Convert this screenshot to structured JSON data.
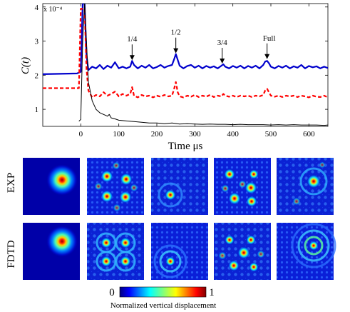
{
  "chart_data": {
    "type": "line",
    "title": "",
    "xlabel": "Time μs",
    "ylabel": "C(t)",
    "y_scale_note": "x 10⁻⁴",
    "xlim": [
      -100,
      650
    ],
    "ylim": [
      0.5,
      4.1
    ],
    "x_ticks": [
      "0",
      "100",
      "200",
      "300",
      "400",
      "500",
      "600"
    ],
    "y_ticks": [
      "1",
      "2",
      "3",
      "4"
    ],
    "annotations": [
      {
        "label": "1/4",
        "x": 135,
        "y": 2.4
      },
      {
        "label": "1/2",
        "x": 250,
        "y": 2.6
      },
      {
        "label": "3/4",
        "x": 372,
        "y": 2.3
      },
      {
        "label": "Full",
        "x": 490,
        "y": 2.43
      }
    ],
    "series": [
      {
        "color": "#0000cc",
        "style": "solid",
        "x": [
          -100,
          -10,
          0,
          5,
          10,
          15,
          20,
          30,
          40,
          50,
          60,
          70,
          80,
          90,
          100,
          110,
          120,
          130,
          135,
          140,
          150,
          160,
          170,
          180,
          190,
          200,
          210,
          220,
          230,
          240,
          245,
          250,
          255,
          260,
          270,
          280,
          290,
          300,
          310,
          320,
          330,
          340,
          350,
          360,
          370,
          375,
          380,
          390,
          400,
          410,
          420,
          430,
          440,
          450,
          460,
          470,
          480,
          485,
          490,
          495,
          500,
          510,
          520,
          530,
          540,
          550,
          560,
          570,
          580,
          590,
          600,
          610,
          620,
          630,
          640,
          650
        ],
        "y": [
          2.03,
          2.05,
          2.1,
          4.1,
          4.1,
          2.6,
          2.15,
          2.25,
          2.2,
          2.3,
          2.18,
          2.28,
          2.22,
          2.38,
          2.2,
          2.25,
          2.2,
          2.25,
          2.42,
          2.3,
          2.2,
          2.28,
          2.22,
          2.3,
          2.2,
          2.24,
          2.3,
          2.22,
          2.27,
          2.3,
          2.45,
          2.62,
          2.45,
          2.28,
          2.2,
          2.27,
          2.3,
          2.22,
          2.28,
          2.2,
          2.27,
          2.22,
          2.26,
          2.2,
          2.28,
          2.32,
          2.25,
          2.2,
          2.27,
          2.22,
          2.28,
          2.2,
          2.27,
          2.22,
          2.28,
          2.2,
          2.3,
          2.4,
          2.42,
          2.35,
          2.25,
          2.2,
          2.27,
          2.22,
          2.28,
          2.2,
          2.26,
          2.22,
          2.3,
          2.2,
          2.27,
          2.23,
          2.26,
          2.2,
          2.25,
          2.21
        ]
      },
      {
        "color": "#ff0000",
        "style": "dashed",
        "x": [
          -100,
          -10,
          -5,
          0,
          5,
          10,
          15,
          20,
          30,
          40,
          50,
          60,
          70,
          80,
          90,
          100,
          110,
          120,
          130,
          135,
          140,
          150,
          160,
          170,
          180,
          190,
          200,
          210,
          220,
          230,
          240,
          245,
          250,
          255,
          260,
          270,
          280,
          290,
          300,
          310,
          320,
          330,
          340,
          350,
          360,
          370,
          375,
          380,
          390,
          400,
          410,
          420,
          430,
          440,
          450,
          460,
          470,
          480,
          485,
          490,
          495,
          500,
          510,
          520,
          530,
          540,
          550,
          560,
          570,
          580,
          590,
          600,
          610,
          620,
          630,
          640,
          650
        ],
        "y": [
          1.62,
          1.62,
          1.62,
          3.95,
          3.95,
          3.95,
          2.2,
          1.55,
          1.35,
          1.42,
          1.38,
          1.5,
          1.4,
          1.45,
          1.52,
          1.38,
          1.45,
          1.4,
          1.45,
          1.65,
          1.4,
          1.35,
          1.42,
          1.38,
          1.4,
          1.35,
          1.4,
          1.37,
          1.42,
          1.38,
          1.4,
          1.58,
          1.8,
          1.5,
          1.38,
          1.35,
          1.4,
          1.37,
          1.42,
          1.36,
          1.4,
          1.37,
          1.42,
          1.36,
          1.4,
          1.38,
          1.45,
          1.4,
          1.37,
          1.4,
          1.36,
          1.4,
          1.38,
          1.4,
          1.36,
          1.4,
          1.38,
          1.42,
          1.55,
          1.6,
          1.5,
          1.4,
          1.37,
          1.4,
          1.36,
          1.4,
          1.38,
          1.4,
          1.36,
          1.4,
          1.38,
          1.35,
          1.4,
          1.37,
          1.36,
          1.4,
          1.35
        ]
      },
      {
        "color": "#000000",
        "style": "solid",
        "x": [
          -5,
          0,
          5,
          10,
          15,
          20,
          30,
          40,
          50,
          60,
          70,
          75,
          80,
          90,
          100,
          120,
          140,
          160,
          180,
          200,
          220,
          240,
          260,
          280,
          300,
          320,
          340,
          360,
          380,
          400,
          420,
          440,
          460,
          480,
          500,
          520,
          540,
          560,
          580,
          600,
          620,
          640,
          650
        ],
        "y": [
          0.65,
          0.7,
          3.0,
          4.1,
          3.0,
          1.8,
          1.25,
          1.0,
          0.9,
          0.85,
          0.8,
          0.85,
          0.75,
          0.72,
          0.68,
          0.66,
          0.64,
          0.62,
          0.6,
          0.6,
          0.58,
          0.6,
          0.57,
          0.58,
          0.57,
          0.56,
          0.57,
          0.56,
          0.56,
          0.55,
          0.56,
          0.55,
          0.55,
          0.55,
          0.54,
          0.55,
          0.54,
          0.55,
          0.54,
          0.54,
          0.54,
          0.53,
          0.54
        ]
      }
    ]
  },
  "panels": {
    "row_labels": [
      "EXP",
      "FDTD"
    ]
  },
  "colorbar": {
    "min_label": "0",
    "max_label": "1",
    "caption": "Normalized vertical displacement"
  }
}
